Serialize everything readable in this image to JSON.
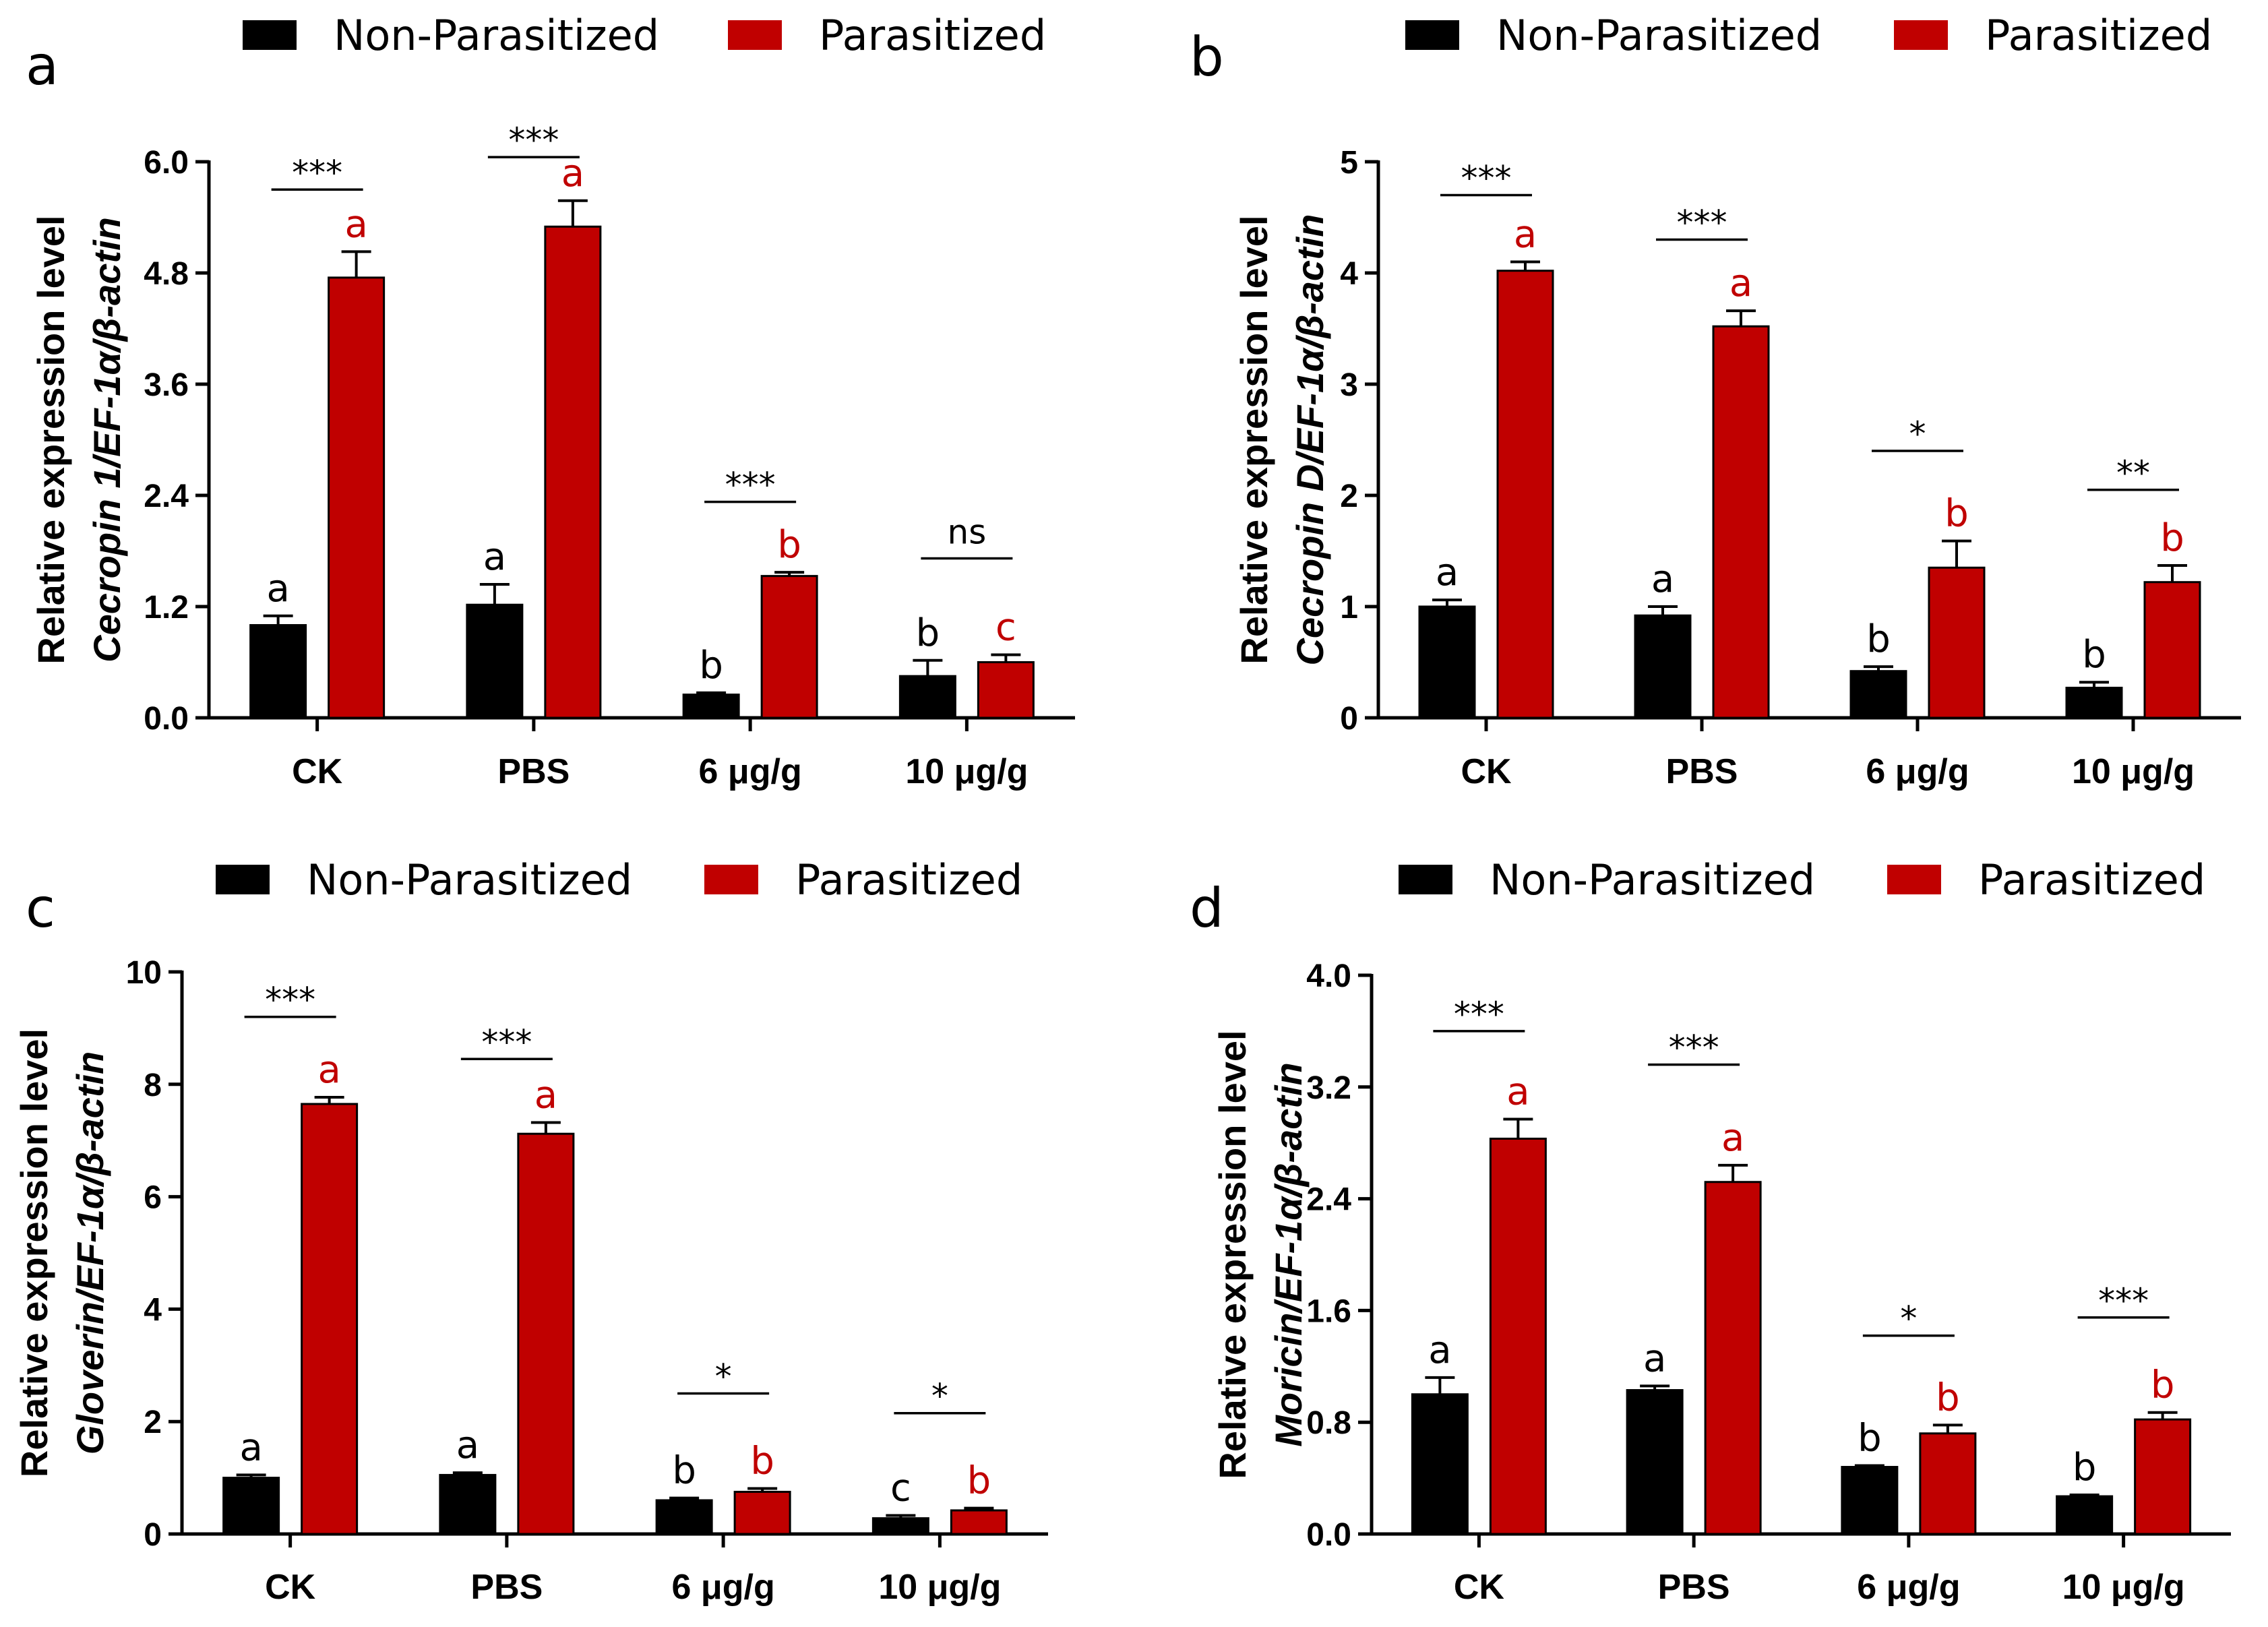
{
  "legend": {
    "series_a": "Non-Parasitized",
    "series_b": "Parasitized"
  },
  "colors": {
    "non_parasitized": "#000000",
    "parasitized": "#c00000",
    "axis": "#000000"
  },
  "chart_data": [
    {
      "panel": "a",
      "type": "bar",
      "categories": [
        "CK",
        "PBS",
        "6 μg/g",
        "10 μg/g"
      ],
      "ylim": [
        0,
        6
      ],
      "yticks": [
        "0.0",
        "1.2",
        "2.4",
        "3.6",
        "4.8",
        "6.0"
      ],
      "ylabel_line1": "Relative expression level",
      "ylabel_line2_gene": "Cecropin 1",
      "ylabel_line2_ref": "/EF-1α/β-actin",
      "series": [
        {
          "name": "Non-Parasitized",
          "values": [
            1.0,
            1.22,
            0.25,
            0.45
          ],
          "errors": [
            0.1,
            0.22,
            0.02,
            0.17
          ],
          "letters": [
            "a",
            "a",
            "b",
            "b"
          ]
        },
        {
          "name": "Parasitized",
          "values": [
            4.75,
            5.3,
            1.53,
            0.6
          ],
          "errors": [
            0.28,
            0.28,
            0.04,
            0.08
          ],
          "letters": [
            "a",
            "a",
            "b",
            "c"
          ]
        }
      ],
      "significance": [
        "***",
        "***",
        "***",
        "ns"
      ],
      "sig_heights": [
        5.7,
        6.05,
        2.33,
        1.72
      ]
    },
    {
      "panel": "b",
      "type": "bar",
      "categories": [
        "CK",
        "PBS",
        "6 μg/g",
        "10 μg/g"
      ],
      "ylim": [
        0,
        5
      ],
      "yticks": [
        "0",
        "1",
        "2",
        "3",
        "4",
        "5"
      ],
      "ylabel_line1": "Relative expression level",
      "ylabel_line2_gene": "Cecropin D",
      "ylabel_line2_ref": "/EF-1α/β-actin",
      "series": [
        {
          "name": "Non-Parasitized",
          "values": [
            1.0,
            0.92,
            0.42,
            0.27
          ],
          "errors": [
            0.06,
            0.08,
            0.04,
            0.05
          ],
          "letters": [
            "a",
            "a",
            "b",
            "b"
          ]
        },
        {
          "name": "Parasitized",
          "values": [
            4.02,
            3.52,
            1.35,
            1.22
          ],
          "errors": [
            0.08,
            0.14,
            0.24,
            0.15
          ],
          "letters": [
            "a",
            "a",
            "b",
            "b"
          ]
        }
      ],
      "significance": [
        "***",
        "***",
        "*",
        "**"
      ],
      "sig_heights": [
        4.7,
        4.3,
        2.4,
        2.05
      ]
    },
    {
      "panel": "c",
      "type": "bar",
      "categories": [
        "CK",
        "PBS",
        "6 μg/g",
        "10 μg/g"
      ],
      "ylim": [
        0,
        10
      ],
      "yticks": [
        "0",
        "2",
        "4",
        "6",
        "8",
        "10"
      ],
      "ylabel_line1": "Relative expression level",
      "ylabel_line2_gene": "Gloverin",
      "ylabel_line2_ref": "/EF-1α/β-actin",
      "series": [
        {
          "name": "Non-Parasitized",
          "values": [
            1.0,
            1.05,
            0.6,
            0.28
          ],
          "errors": [
            0.05,
            0.04,
            0.04,
            0.05
          ],
          "letters": [
            "a",
            "a",
            "b",
            "c"
          ]
        },
        {
          "name": "Parasitized",
          "values": [
            7.65,
            7.12,
            0.75,
            0.42
          ],
          "errors": [
            0.12,
            0.2,
            0.06,
            0.04
          ],
          "letters": [
            "a",
            "a",
            "b",
            "b"
          ]
        }
      ],
      "significance": [
        "***",
        "***",
        "*",
        "*"
      ],
      "sig_heights": [
        9.2,
        8.45,
        2.5,
        2.15
      ]
    },
    {
      "panel": "d",
      "type": "bar",
      "categories": [
        "CK",
        "PBS",
        "6 μg/g",
        "10 μg/g"
      ],
      "ylim": [
        0,
        4.0
      ],
      "yticks": [
        "0.0",
        "0.8",
        "1.6",
        "2.4",
        "3.2",
        "4.0"
      ],
      "ylabel_line1": "Relative expression level",
      "ylabel_line2_gene": "Moricin",
      "ylabel_line2_ref": "/EF-1α/β-actin",
      "series": [
        {
          "name": "Non-Parasitized",
          "values": [
            1.0,
            1.03,
            0.48,
            0.27
          ],
          "errors": [
            0.12,
            0.03,
            0.01,
            0.01
          ],
          "letters": [
            "a",
            "a",
            "b",
            "b"
          ]
        },
        {
          "name": "Parasitized",
          "values": [
            2.83,
            2.52,
            0.72,
            0.82
          ],
          "errors": [
            0.14,
            0.12,
            0.06,
            0.05
          ],
          "letters": [
            "a",
            "a",
            "b",
            "b"
          ]
        }
      ],
      "significance": [
        "***",
        "***",
        "*",
        "***"
      ],
      "sig_heights": [
        3.6,
        3.36,
        1.42,
        1.55
      ]
    }
  ]
}
